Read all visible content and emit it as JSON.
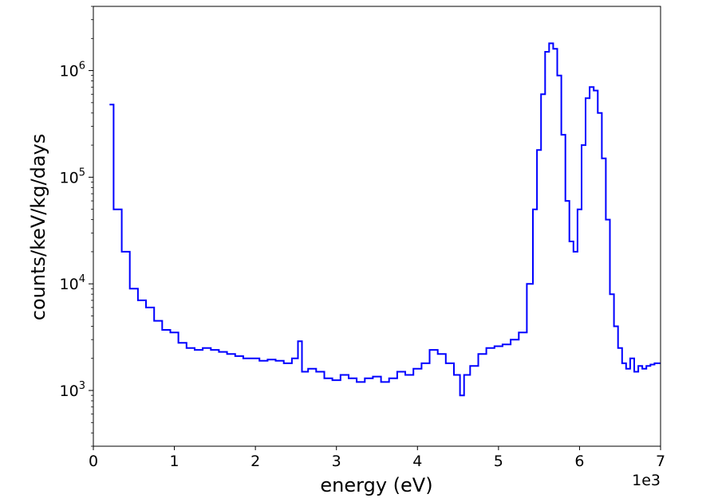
{
  "chart_data": {
    "type": "line",
    "drawstyle": "steps",
    "xlabel": "energy (eV)",
    "ylabel": "counts/keV/kg/days",
    "x_offset_label": "1e3",
    "xlim": [
      0,
      7
    ],
    "ylim": [
      300,
      4000000
    ],
    "yscale": "log",
    "xticks": [
      0,
      1,
      2,
      3,
      4,
      5,
      6,
      7
    ],
    "xtick_labels": [
      "0",
      "1",
      "2",
      "3",
      "4",
      "5",
      "6",
      "7"
    ],
    "yticks": [
      1000,
      10000,
      100000,
      1000000
    ],
    "ytick_labels": [
      {
        "base": "10",
        "exp": "3"
      },
      {
        "base": "10",
        "exp": "4"
      },
      {
        "base": "10",
        "exp": "5"
      },
      {
        "base": "10",
        "exp": "6"
      }
    ],
    "grid": false,
    "color": "#0000ff",
    "x": [
      0.2,
      0.3,
      0.4,
      0.5,
      0.6,
      0.7,
      0.8,
      0.9,
      1.0,
      1.1,
      1.2,
      1.3,
      1.4,
      1.5,
      1.6,
      1.7,
      1.8,
      1.9,
      2.0,
      2.1,
      2.2,
      2.3,
      2.4,
      2.5,
      2.55,
      2.6,
      2.7,
      2.8,
      2.9,
      3.0,
      3.1,
      3.2,
      3.3,
      3.4,
      3.5,
      3.6,
      3.7,
      3.8,
      3.9,
      4.0,
      4.1,
      4.2,
      4.3,
      4.4,
      4.5,
      4.55,
      4.6,
      4.7,
      4.8,
      4.9,
      5.0,
      5.1,
      5.2,
      5.3,
      5.4,
      5.45,
      5.5,
      5.55,
      5.6,
      5.65,
      5.7,
      5.75,
      5.8,
      5.85,
      5.9,
      5.95,
      6.0,
      6.05,
      6.1,
      6.15,
      6.2,
      6.25,
      6.3,
      6.35,
      6.4,
      6.45,
      6.5,
      6.55,
      6.6,
      6.65,
      6.7,
      6.75,
      6.8,
      6.85,
      6.9,
      6.95
    ],
    "values": [
      480000,
      50000,
      20000,
      9000,
      7000,
      6000,
      4500,
      3700,
      3500,
      2800,
      2500,
      2400,
      2500,
      2400,
      2300,
      2200,
      2100,
      2000,
      2000,
      1900,
      1950,
      1900,
      1800,
      2000,
      2900,
      1500,
      1600,
      1500,
      1300,
      1250,
      1400,
      1300,
      1200,
      1300,
      1350,
      1200,
      1300,
      1500,
      1400,
      1600,
      1800,
      2400,
      2200,
      1800,
      1400,
      900,
      1400,
      1700,
      2200,
      2500,
      2600,
      2700,
      3000,
      3500,
      10000,
      50000,
      180000,
      600000,
      1500000,
      1800000,
      1600000,
      900000,
      250000,
      60000,
      25000,
      20000,
      50000,
      200000,
      550000,
      700000,
      650000,
      400000,
      150000,
      40000,
      8000,
      4000,
      2500,
      1800,
      1600,
      2000,
      1500,
      1700,
      1600,
      1700,
      1750,
      1800
    ]
  }
}
